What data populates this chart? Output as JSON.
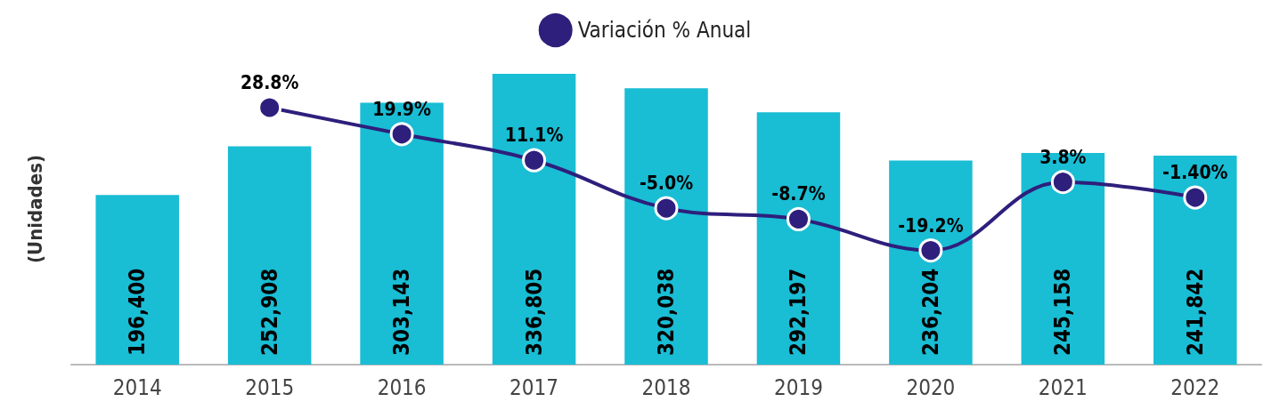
{
  "chart_data": {
    "type": "bar",
    "ylabel": "(Unidades)",
    "categories": [
      "2014",
      "2015",
      "2016",
      "2017",
      "2018",
      "2019",
      "2020",
      "2021",
      "2022"
    ],
    "series": [
      {
        "color": "#19bdd4",
        "values": [
          196400,
          252908,
          303143,
          336805,
          320038,
          292197,
          236204,
          245158,
          241842
        ],
        "value_labels": [
          "196,400",
          "252,908",
          "303,143",
          "336,805",
          "320,038",
          "292,197",
          "236,204",
          "245,158",
          "241,842"
        ]
      },
      {
        "type": "line",
        "name": "Variación % Anual",
        "axis": "y2",
        "color": "#2e1f7c",
        "marker": "circle",
        "line_style": "solid",
        "values": [
          null,
          28.8,
          19.9,
          11.1,
          -5.0,
          -8.7,
          -19.2,
          3.8,
          -1.4
        ],
        "value_labels": [
          null,
          "28.8%",
          "19.9%",
          "11.1%",
          "-5.0%",
          "-8.7%",
          "-19.2%",
          "3.8%",
          "-1.40%"
        ]
      }
    ],
    "tick_labels": "x",
    "grid": false,
    "legend": "top"
  }
}
